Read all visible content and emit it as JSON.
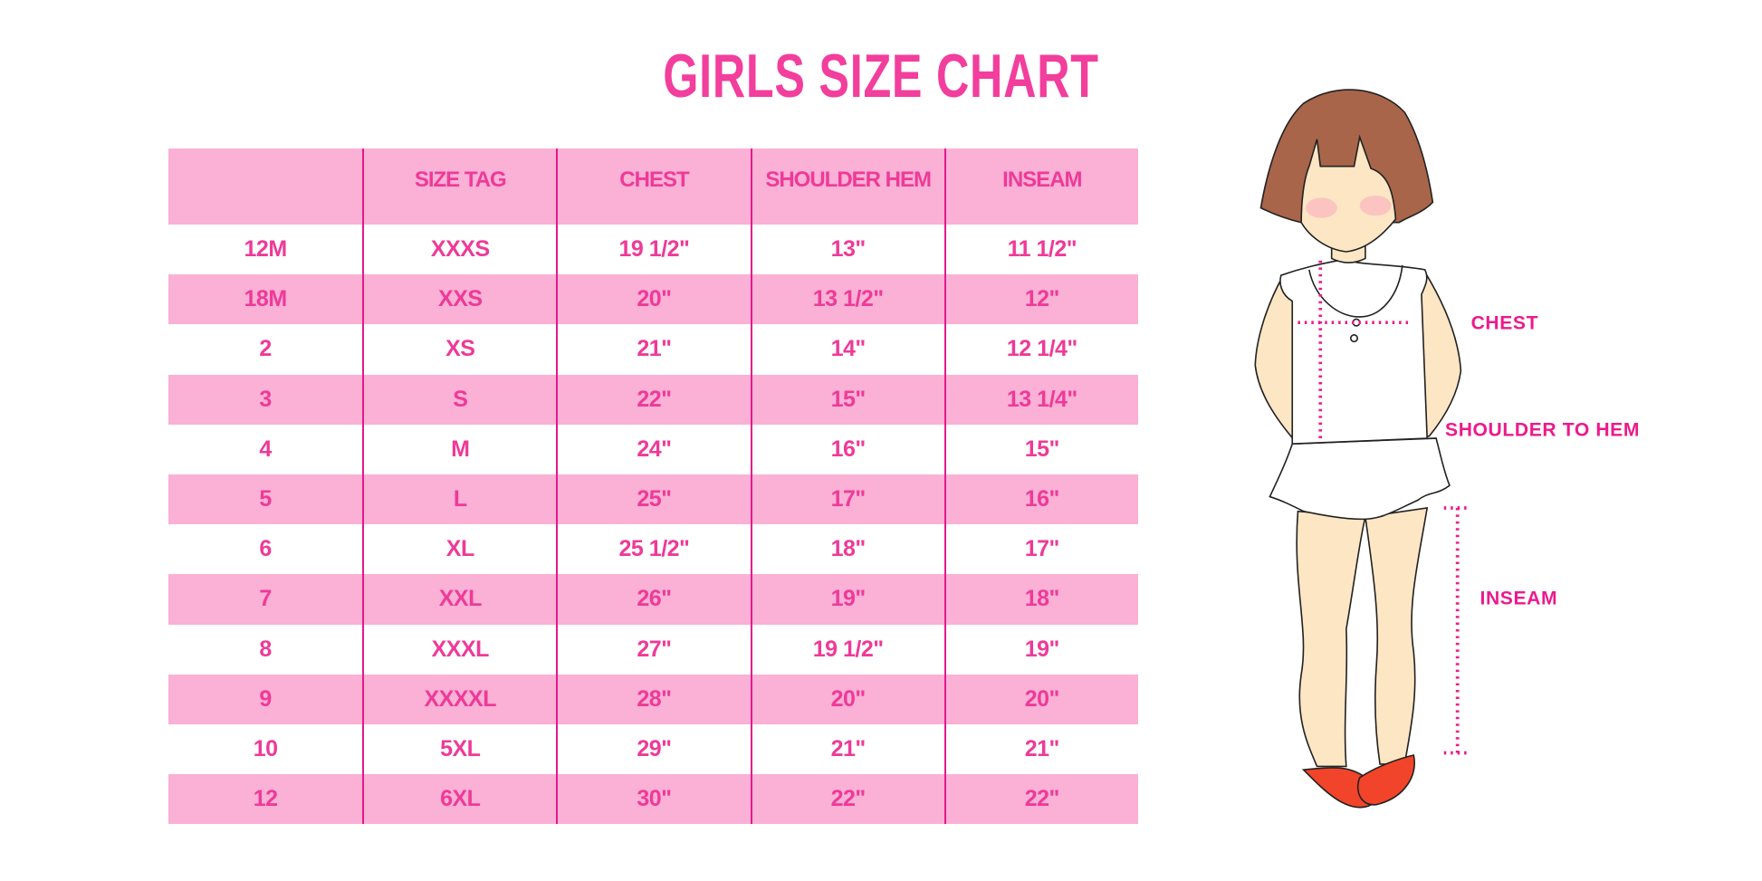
{
  "title": "GIRLS SIZE CHART",
  "table": {
    "headers": [
      "",
      "SIZE TAG",
      "CHEST",
      "SHOULDER HEM",
      "INSEAM"
    ],
    "rows": [
      [
        "12M",
        "XXXS",
        "19 1/2\"",
        "13\"",
        "11 1/2\""
      ],
      [
        "18M",
        "XXS",
        "20\"",
        "13 1/2\"",
        "12\""
      ],
      [
        "2",
        "XS",
        "21\"",
        "14\"",
        "12 1/4\""
      ],
      [
        "3",
        "S",
        "22\"",
        "15\"",
        "13 1/4\""
      ],
      [
        "4",
        "M",
        "24\"",
        "16\"",
        "15\""
      ],
      [
        "5",
        "L",
        "25\"",
        "17\"",
        "16\""
      ],
      [
        "6",
        "XL",
        "25 1/2\"",
        "18\"",
        "17\""
      ],
      [
        "7",
        "XXL",
        "26\"",
        "19\"",
        "18\""
      ],
      [
        "8",
        "XXXL",
        "27\"",
        "19 1/2\"",
        "19\""
      ],
      [
        "9",
        "XXXXL",
        "28\"",
        "20\"",
        "20\""
      ],
      [
        "10",
        "5XL",
        "29\"",
        "21\"",
        "21\""
      ],
      [
        "12",
        "6XL",
        "30\"",
        "22\"",
        "22\""
      ]
    ]
  },
  "figure": {
    "labels": {
      "chest": "CHEST",
      "shoulder_to_hem": "SHOULDER TO HEM",
      "inseam": "INSEAM"
    }
  },
  "colors": {
    "accent": "#ee3a98",
    "row_fill": "#fbb0d6",
    "divider": "#e4198b",
    "hair": "#a8654a",
    "skin": "#fde6c4",
    "shoes": "#f2442a"
  }
}
